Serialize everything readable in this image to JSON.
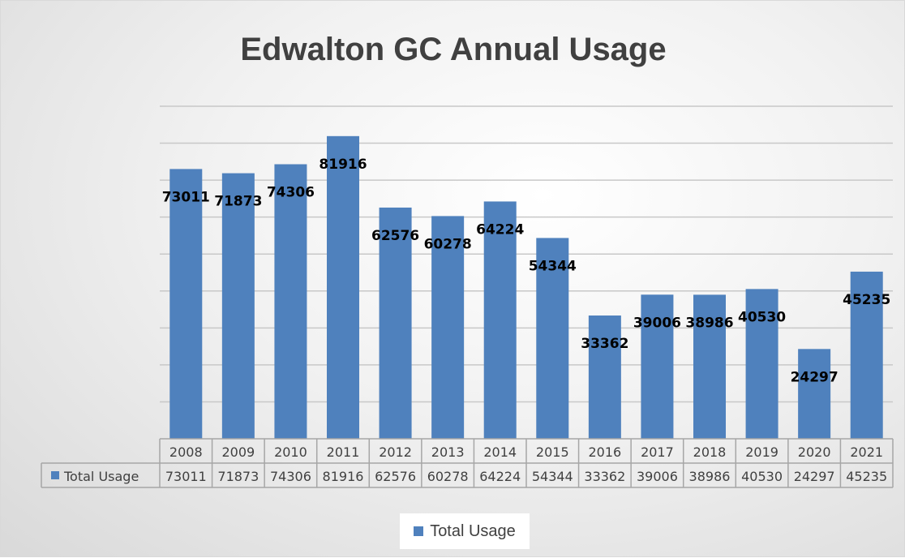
{
  "chart_data": {
    "type": "bar",
    "title": "Edwalton GC Annual Usage",
    "xlabel": "",
    "ylabel": "",
    "categories": [
      "2008",
      "2009",
      "2010",
      "2011",
      "2012",
      "2013",
      "2014",
      "2015",
      "2016",
      "2017",
      "2018",
      "2019",
      "2020",
      "2021"
    ],
    "series": [
      {
        "name": "Total Usage",
        "values": [
          73011,
          71873,
          74306,
          81916,
          62576,
          60278,
          64224,
          54344,
          33362,
          39006,
          38986,
          40530,
          24297,
          45235
        ]
      }
    ],
    "ylim": [
      0,
      90000
    ],
    "grid": true,
    "data_labels": true,
    "data_table": true,
    "legend": "bottom",
    "color": "#4f81bd"
  }
}
